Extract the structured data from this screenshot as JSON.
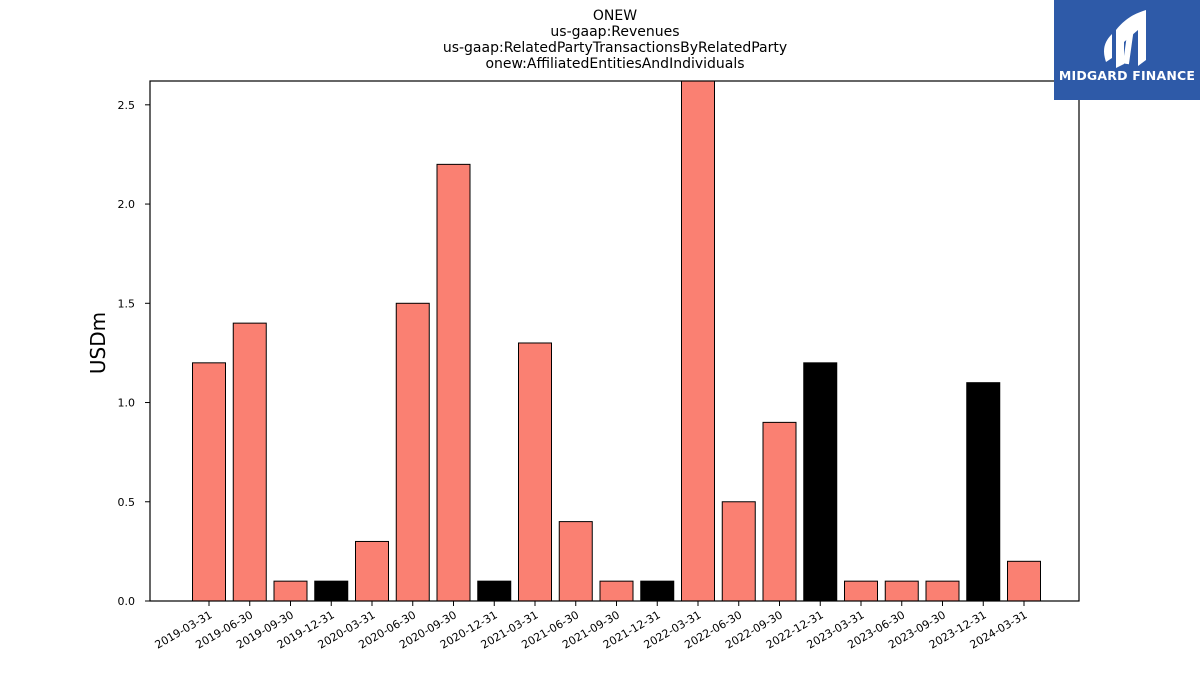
{
  "brand": {
    "name": "MIDGARD FINANCE",
    "color": "#2e5aa8"
  },
  "chart_data": {
    "type": "bar",
    "title_lines": [
      "ONEW",
      "us-gaap:Revenues",
      "us-gaap:RelatedPartyTransactionsByRelatedParty",
      "onew:AffiliatedEntitiesAndIndividuals"
    ],
    "xlabel": "",
    "ylabel": "USDm",
    "ylim": [
      0,
      2.62
    ],
    "yticks": [
      0.0,
      0.5,
      1.0,
      1.5,
      2.0,
      2.5
    ],
    "categories": [
      "2019-03-31",
      "2019-06-30",
      "2019-09-30",
      "2019-12-31",
      "2020-03-31",
      "2020-06-30",
      "2020-09-30",
      "2020-12-31",
      "2021-03-31",
      "2021-06-30",
      "2021-09-30",
      "2021-12-31",
      "2022-03-31",
      "2022-06-30",
      "2022-09-30",
      "2022-12-31",
      "2023-03-31",
      "2023-06-30",
      "2023-09-30",
      "2023-12-31",
      "2024-03-31"
    ],
    "values": [
      1.2,
      1.4,
      0.1,
      0.1,
      0.3,
      1.5,
      2.2,
      0.1,
      1.3,
      0.4,
      0.1,
      0.1,
      2.62,
      0.5,
      0.9,
      1.2,
      0.1,
      0.1,
      0.1,
      1.1,
      0.2
    ],
    "bar_colors": [
      "#fa8072",
      "#fa8072",
      "#fa8072",
      "#000000",
      "#fa8072",
      "#fa8072",
      "#fa8072",
      "#000000",
      "#fa8072",
      "#fa8072",
      "#fa8072",
      "#000000",
      "#fa8072",
      "#fa8072",
      "#fa8072",
      "#000000",
      "#fa8072",
      "#fa8072",
      "#fa8072",
      "#000000",
      "#fa8072"
    ],
    "grid": false,
    "legend": "none"
  }
}
